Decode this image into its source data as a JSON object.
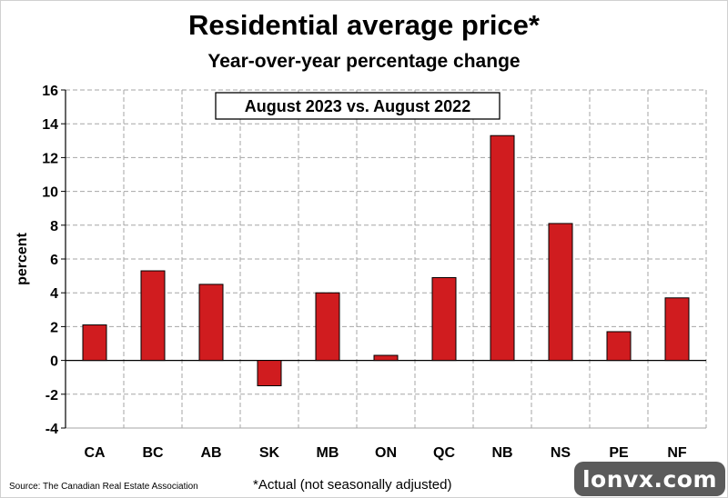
{
  "chart_data": {
    "type": "bar",
    "title": "Residential average price*",
    "subtitle": "Year-over-year percentage change",
    "annotation": "August 2023 vs. August 2022",
    "ylabel": "percent",
    "xlabel": "",
    "ylim": [
      -4,
      16
    ],
    "yticks": [
      -4,
      -2,
      0,
      2,
      4,
      6,
      8,
      10,
      12,
      14,
      16
    ],
    "grid": true,
    "categories": [
      "CA",
      "BC",
      "AB",
      "SK",
      "MB",
      "ON",
      "QC",
      "NB",
      "NS",
      "PE",
      "NF"
    ],
    "values": [
      2.1,
      5.3,
      4.5,
      -1.5,
      4.0,
      0.3,
      4.9,
      13.3,
      8.1,
      1.7,
      3.7
    ],
    "bar_color": "#d01c1f",
    "footnote": "*Actual (not seasonally adjusted)",
    "source": "Source: The Canadian Real Estate Association"
  },
  "watermark": "lonvx.com"
}
